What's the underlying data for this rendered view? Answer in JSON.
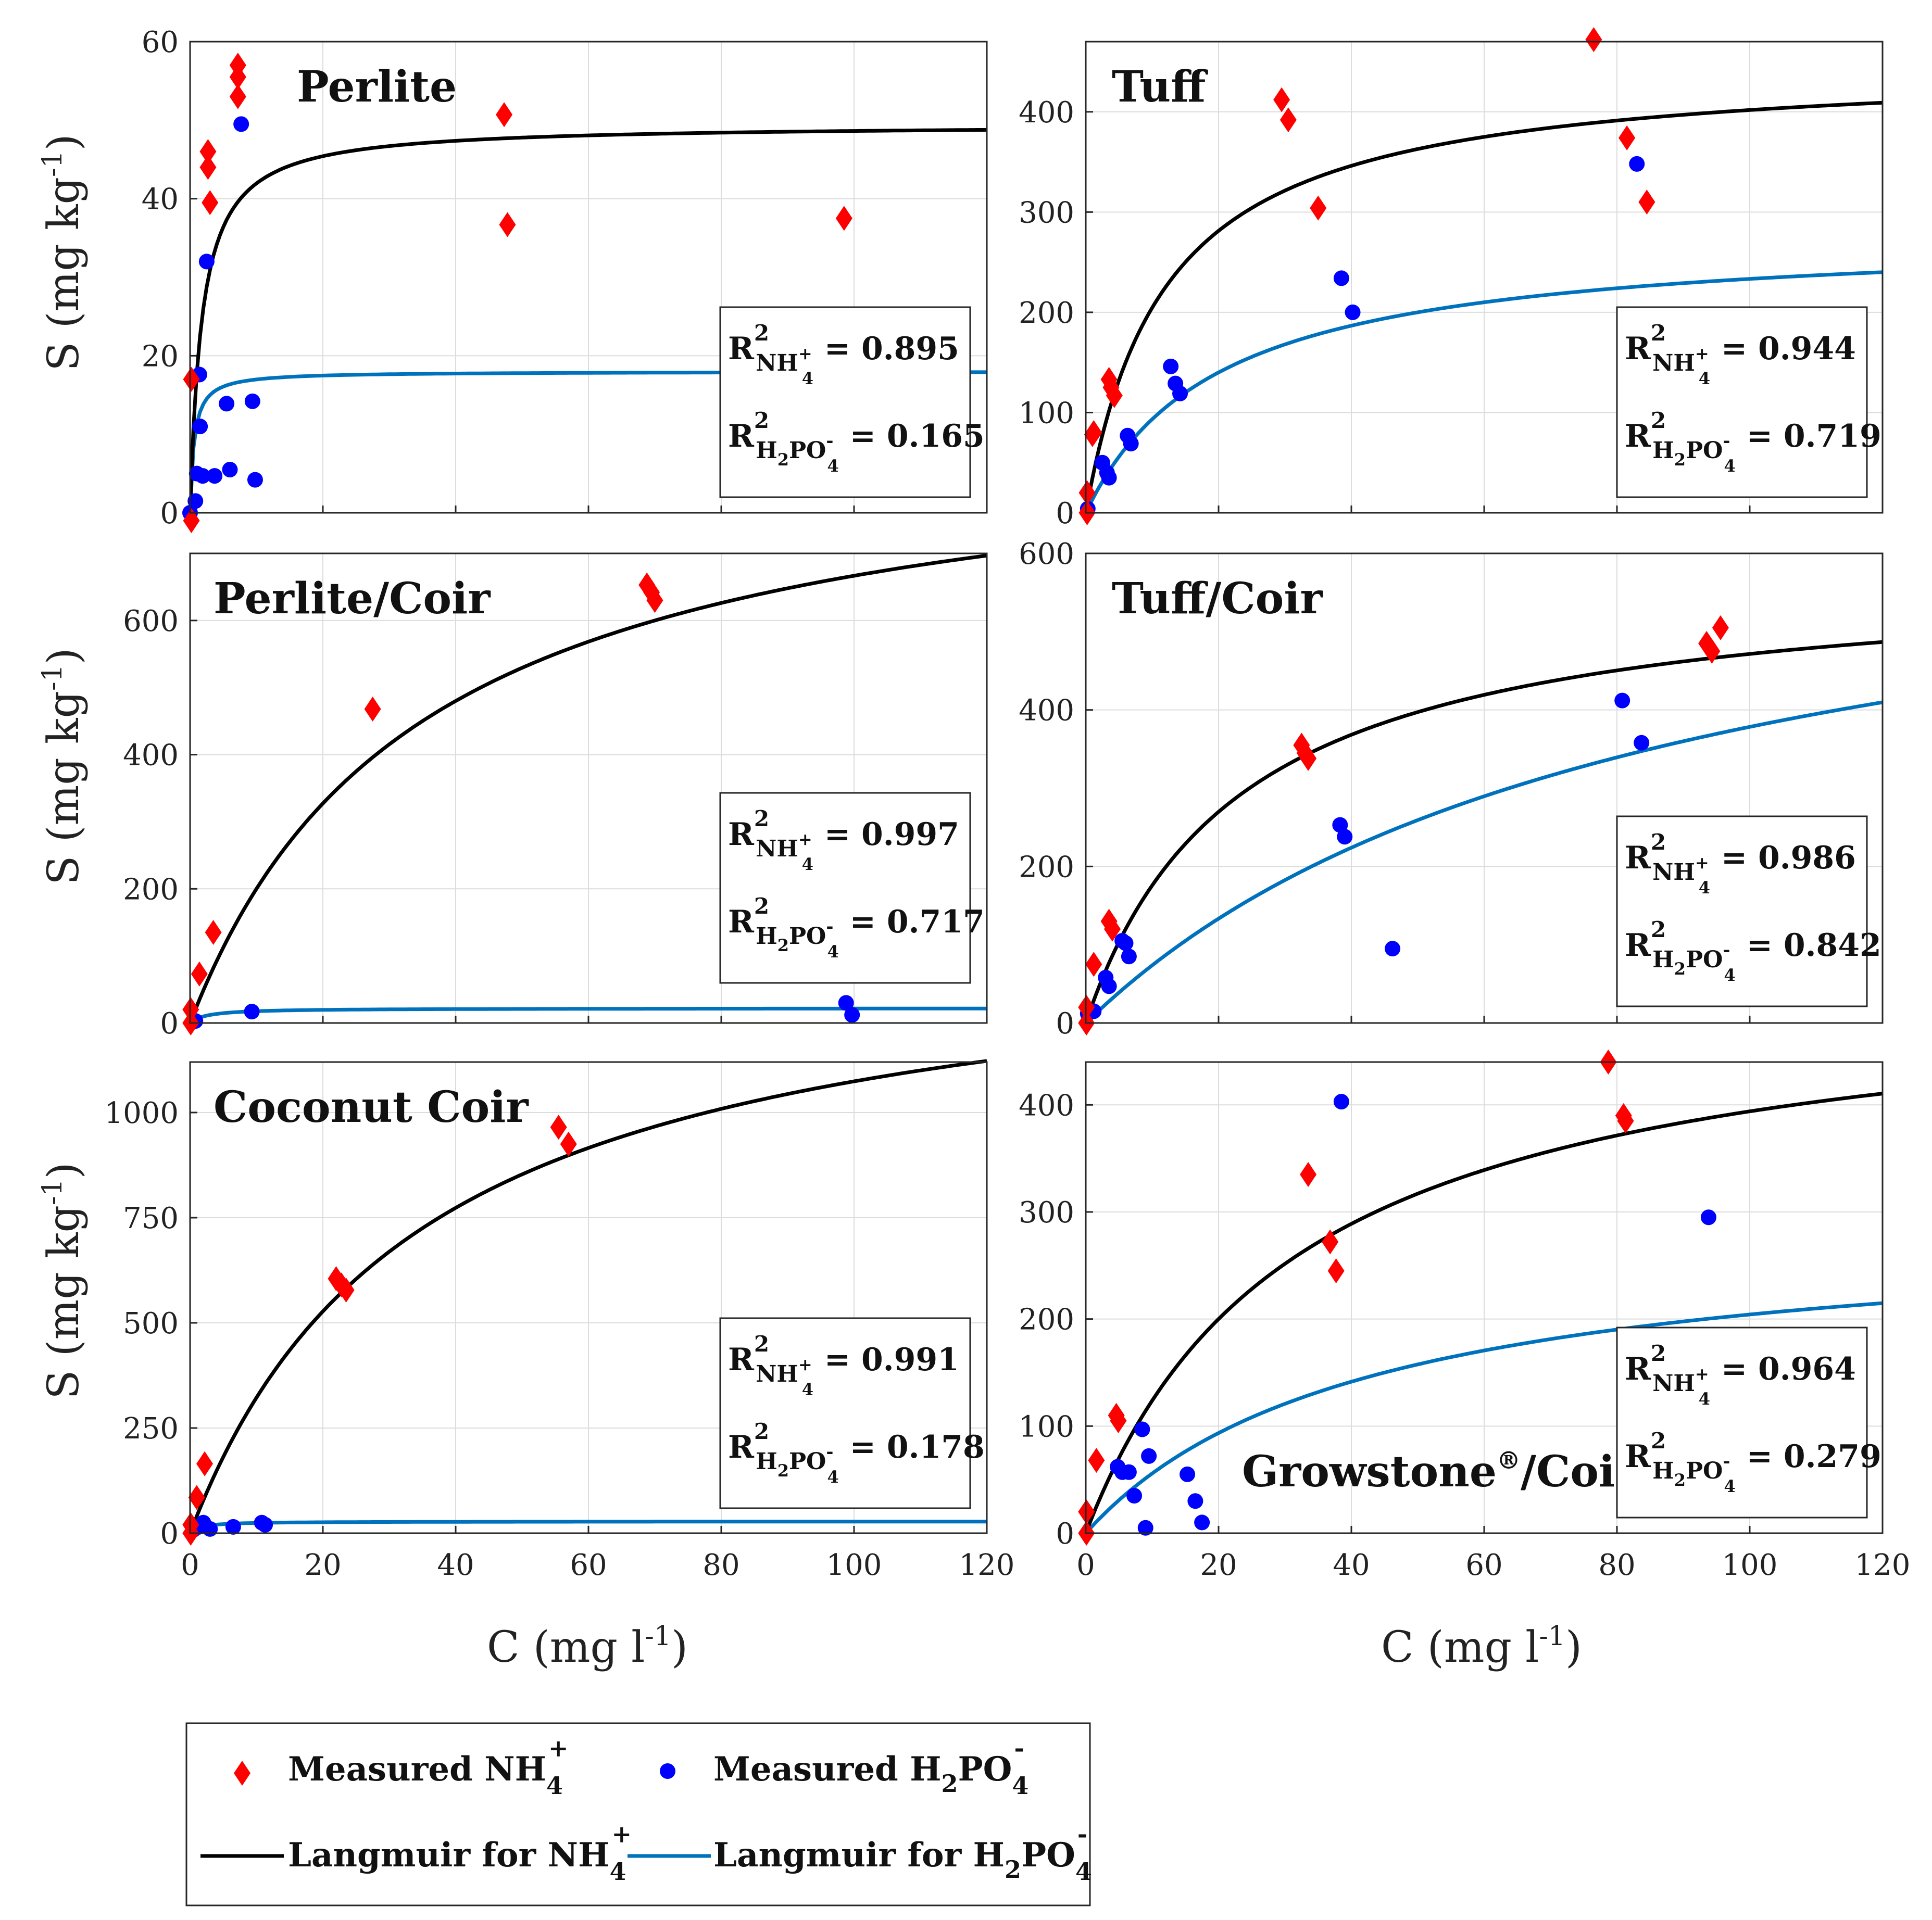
{
  "chart_data": [
    {
      "type": "scatter",
      "title": "Perlite",
      "xlabel": "",
      "ylabel": "S (mg kg-1)",
      "xlim": [
        0,
        120
      ],
      "ylim": [
        0,
        60
      ],
      "xticks": [],
      "yticks": [
        0,
        20,
        40,
        60
      ],
      "r2_nh4": "0.895",
      "r2_h2po4": "0.165",
      "nh4_points": [
        [
          0.2,
          -1
        ],
        [
          0.2,
          17
        ],
        [
          2.7,
          46
        ],
        [
          2.7,
          44
        ],
        [
          3,
          39.5
        ],
        [
          7.2,
          57
        ],
        [
          7.2,
          55.5
        ],
        [
          7.2,
          53
        ],
        [
          47.3,
          50.7
        ],
        [
          47.8,
          36.7
        ],
        [
          98.5,
          37.5
        ]
      ],
      "h2po4_points": [
        [
          0,
          0
        ],
        [
          0.8,
          1.5
        ],
        [
          1,
          5
        ],
        [
          1.4,
          17.6
        ],
        [
          1.5,
          11
        ],
        [
          1.9,
          4.7
        ],
        [
          2.5,
          32
        ],
        [
          3.7,
          4.7
        ],
        [
          5.5,
          13.9
        ],
        [
          6,
          5.5
        ],
        [
          7.7,
          49.5
        ],
        [
          9.4,
          14.2
        ],
        [
          9.8,
          4.2
        ]
      ],
      "nh4_curve": {
        "qmax": 49.5,
        "k": 1.8
      },
      "h2po4_curve": {
        "qmax": 18,
        "k": 0.6
      }
    },
    {
      "type": "scatter",
      "title": "Tuff",
      "xlabel": "",
      "ylabel": "",
      "xlim": [
        0,
        120
      ],
      "ylim": [
        0,
        470
      ],
      "xticks": [],
      "yticks": [
        0,
        100,
        200,
        300,
        400
      ],
      "r2_nh4": "0.944",
      "r2_h2po4": "0.719",
      "nh4_points": [
        [
          0.2,
          0
        ],
        [
          0.2,
          20
        ],
        [
          1,
          78
        ],
        [
          1.2,
          80
        ],
        [
          3.5,
          133
        ],
        [
          3.8,
          125
        ],
        [
          4.3,
          117
        ],
        [
          29.5,
          412
        ],
        [
          30.5,
          392
        ],
        [
          35,
          304
        ],
        [
          76.5,
          472
        ],
        [
          81.5,
          374
        ],
        [
          84.5,
          310
        ]
      ],
      "h2po4_points": [
        [
          0.3,
          4
        ],
        [
          2.5,
          50
        ],
        [
          3.2,
          40
        ],
        [
          3.5,
          35
        ],
        [
          6.3,
          77
        ],
        [
          6.8,
          69
        ],
        [
          12.8,
          146
        ],
        [
          13.5,
          129
        ],
        [
          14.2,
          119
        ],
        [
          38.5,
          234
        ],
        [
          40.2,
          200
        ],
        [
          83,
          348
        ]
      ],
      "nh4_curve": {
        "qmax": 450,
        "k": 12
      },
      "h2po4_curve": {
        "qmax": 280,
        "k": 20
      }
    },
    {
      "type": "scatter",
      "title": "Perlite/Coir",
      "xlabel": "",
      "ylabel": "S (mg kg-1)",
      "xlim": [
        0,
        120
      ],
      "ylim": [
        0,
        700
      ],
      "xticks": [],
      "yticks": [
        0,
        200,
        400,
        600
      ],
      "r2_nh4": "0.997",
      "r2_h2po4": "0.717",
      "nh4_points": [
        [
          0.1,
          0
        ],
        [
          0.1,
          20
        ],
        [
          1.4,
          73
        ],
        [
          3.5,
          135
        ],
        [
          27.5,
          468
        ],
        [
          68.8,
          653
        ],
        [
          69.5,
          642
        ],
        [
          70,
          630
        ]
      ],
      "h2po4_points": [
        [
          0.8,
          3
        ],
        [
          9.3,
          17
        ],
        [
          98.8,
          30
        ],
        [
          99.7,
          12
        ]
      ],
      "nh4_curve": {
        "qmax": 900,
        "k": 35
      },
      "h2po4_curve": {
        "qmax": 22,
        "k": 2.5
      }
    },
    {
      "type": "scatter",
      "title": "Tuff/Coir",
      "xlabel": "",
      "ylabel": "",
      "xlim": [
        0,
        120
      ],
      "ylim": [
        0,
        600
      ],
      "xticks": [],
      "yticks": [
        0,
        200,
        400,
        600
      ],
      "r2_nh4": "0.986",
      "r2_h2po4": "0.842",
      "nh4_points": [
        [
          0.1,
          0
        ],
        [
          0.1,
          20
        ],
        [
          1.2,
          75
        ],
        [
          3.5,
          130
        ],
        [
          4,
          120
        ],
        [
          32.5,
          355
        ],
        [
          33,
          345
        ],
        [
          33.5,
          338
        ],
        [
          93.5,
          485
        ],
        [
          94.3,
          475
        ],
        [
          95.6,
          505
        ]
      ],
      "h2po4_points": [
        [
          0.3,
          12
        ],
        [
          1.2,
          15
        ],
        [
          3,
          58
        ],
        [
          3.5,
          47
        ],
        [
          5.5,
          105
        ],
        [
          6,
          102
        ],
        [
          6.5,
          85
        ],
        [
          38.3,
          253
        ],
        [
          39,
          238
        ],
        [
          46.2,
          95
        ],
        [
          80.8,
          412
        ],
        [
          83.7,
          358
        ]
      ],
      "nh4_curve": {
        "qmax": 580,
        "k": 23
      },
      "h2po4_curve": {
        "qmax": 700,
        "k": 85
      }
    },
    {
      "type": "scatter",
      "title": "Coconut Coir",
      "xlabel": "C (mg l-1)",
      "ylabel": "S (mg kg-1)",
      "xlim": [
        0,
        120
      ],
      "ylim": [
        0,
        1120
      ],
      "xticks": [
        0,
        20,
        40,
        60,
        80,
        100,
        120
      ],
      "yticks": [
        0,
        250,
        500,
        750,
        1000
      ],
      "r2_nh4": "0.991",
      "r2_h2po4": "0.178",
      "nh4_points": [
        [
          0.1,
          0
        ],
        [
          0.1,
          20
        ],
        [
          1,
          85
        ],
        [
          2.2,
          165
        ],
        [
          22,
          605
        ],
        [
          22.8,
          590
        ],
        [
          23.5,
          578
        ],
        [
          55.5,
          965
        ],
        [
          57,
          925
        ]
      ],
      "h2po4_points": [
        [
          0.5,
          8
        ],
        [
          1.3,
          15
        ],
        [
          2,
          25
        ],
        [
          3,
          10
        ],
        [
          6.5,
          15
        ],
        [
          10.8,
          25
        ],
        [
          11.3,
          20
        ]
      ],
      "nh4_curve": {
        "qmax": 1450,
        "k": 35
      },
      "h2po4_curve": {
        "qmax": 28,
        "k": 1.5
      }
    },
    {
      "type": "scatter",
      "title": "Growstone®/Coir",
      "xlabel": "C (mg l-1)",
      "ylabel": "",
      "xlim": [
        0,
        120
      ],
      "ylim": [
        0,
        440
      ],
      "xticks": [
        0,
        20,
        40,
        60,
        80,
        100,
        120
      ],
      "yticks": [
        0,
        100,
        200,
        300,
        400
      ],
      "r2_nh4": "0.964",
      "r2_h2po4": "0.279",
      "nh4_points": [
        [
          0.1,
          0
        ],
        [
          0.1,
          20
        ],
        [
          1.6,
          68
        ],
        [
          4.6,
          110
        ],
        [
          4.9,
          105
        ],
        [
          33.5,
          335
        ],
        [
          36.8,
          272
        ],
        [
          37.7,
          245
        ],
        [
          78.7,
          440
        ],
        [
          81,
          390
        ],
        [
          81.3,
          385
        ]
      ],
      "h2po4_points": [
        [
          4.8,
          62
        ],
        [
          5.5,
          57
        ],
        [
          6.5,
          57
        ],
        [
          7.3,
          35
        ],
        [
          8.5,
          97
        ],
        [
          9,
          5
        ],
        [
          9.5,
          72
        ],
        [
          15.3,
          55
        ],
        [
          16.5,
          30
        ],
        [
          17.5,
          10
        ],
        [
          38.5,
          403
        ],
        [
          93.8,
          295
        ]
      ],
      "nh4_curve": {
        "qmax": 520,
        "k": 32
      },
      "h2po4_curve": {
        "qmax": 290,
        "k": 42
      }
    }
  ],
  "labels": {
    "r_letter": "R",
    "r_sup": "2",
    "nh4_sub_main": "NH",
    "nh4_sub_4": "4",
    "nh4_sub_plus": "+",
    "h2po4_sub_h": "H",
    "h2po4_sub_2": "2",
    "h2po4_sub_po": "PO",
    "h2po4_sub_4": "4",
    "h2po4_sub_minus": "-",
    "eq": "= "
  },
  "axes": {
    "ylabel_main": "S (mg kg",
    "ylabel_exp": "-1",
    "ylabel_close": ")",
    "xlabel_main": "C (mg l",
    "xlabel_exp": "-1",
    "xlabel_close": ")"
  },
  "legend": {
    "measured_nh4": "Measured NH",
    "measured_h2po4": "Measured H",
    "langmuir_nh4": "Langmuir for NH",
    "langmuir_h2po4": "Langmuir for H",
    "ion_sub_4": "4",
    "ion_plus": "+",
    "ion_sub_2": "2",
    "ion_po": "PO",
    "ion_minus": "-"
  },
  "growstone_sup": "®",
  "growstone_base": "Growstone",
  "growstone_tail": "/Coir",
  "colors": {
    "nh4": "#ff0000",
    "h2po4": "#0000ff",
    "nh4_curve": "#000000",
    "h2po4_curve": "#0072bd"
  }
}
